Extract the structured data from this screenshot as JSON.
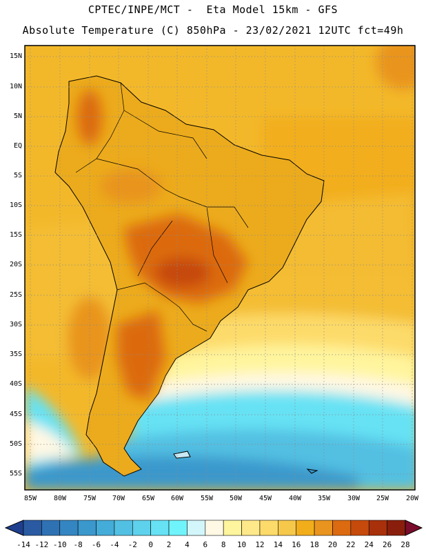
{
  "header": {
    "line1": "CPTEC/INPE/MCT -  Eta Model 15km - GFS",
    "line2": "Absolute Temperature (C) 850hPa - 23/02/2021 12UTC fct=49h"
  },
  "map": {
    "region": "South America",
    "lat_labels": [
      "15N",
      "10N",
      "5N",
      "EQ",
      "5S",
      "10S",
      "15S",
      "20S",
      "25S",
      "30S",
      "35S",
      "40S",
      "45S",
      "50S",
      "55S"
    ],
    "lon_labels": [
      "85W",
      "80W",
      "75W",
      "70W",
      "65W",
      "60W",
      "55W",
      "50W",
      "45W",
      "40W",
      "35W",
      "30W",
      "25W",
      "20W"
    ]
  },
  "legend": {
    "units": "C",
    "tick_labels": [
      "-14",
      "-12",
      "-10",
      "-8",
      "-6",
      "-4",
      "-2",
      "0",
      "2",
      "4",
      "6",
      "8",
      "10",
      "12",
      "14",
      "16",
      "18",
      "20",
      "22",
      "24",
      "26",
      "28"
    ],
    "colors": [
      "#1f3f8e",
      "#2a5aa2",
      "#2f72b4",
      "#3486c2",
      "#3a98cc",
      "#44acd8",
      "#52c0e2",
      "#5ed2ec",
      "#66e2f4",
      "#70f4fc",
      "#d2f6fa",
      "#fff8e4",
      "#fff59e",
      "#fee98a",
      "#fddb6a",
      "#f6c84a",
      "#f2ae1a",
      "#e9941e",
      "#dc6a10",
      "#c64a0c",
      "#a8300a",
      "#8a1e0c",
      "#7a0c2c"
    ]
  }
}
